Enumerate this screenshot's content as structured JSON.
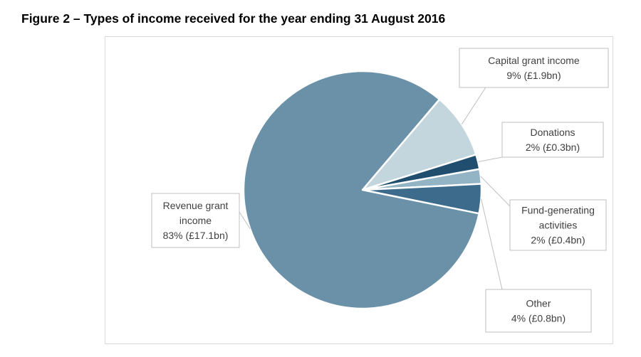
{
  "figure_title": "Figure 2 – Types of income received for the year ending 31 August 2016",
  "chart_data": {
    "type": "pie",
    "title": "",
    "slices": [
      {
        "name": "Capital grant income",
        "percent": 9,
        "value_label": "£1.9bn",
        "label_lines": [
          "Capital grant income",
          "9% (£1.9bn)"
        ],
        "color": "#c3d5dd"
      },
      {
        "name": "Donations",
        "percent": 2,
        "value_label": "£0.3bn",
        "label_lines": [
          "Donations",
          "2% (£0.3bn)"
        ],
        "color": "#1f4e6e"
      },
      {
        "name": "Fund-generating activities",
        "percent": 2,
        "value_label": "£0.4bn",
        "label_lines": [
          "Fund-generating",
          "activities",
          "2% (£0.4bn)"
        ],
        "color": "#93b4c4"
      },
      {
        "name": "Other",
        "percent": 4,
        "value_label": "£0.8bn",
        "label_lines": [
          "Other",
          "4% (£0.8bn)"
        ],
        "color": "#3d6b8b"
      },
      {
        "name": "Revenue grant income",
        "percent": 83,
        "value_label": "£17.1bn",
        "label_lines": [
          "Revenue grant",
          "income",
          "83% (£17.1bn)"
        ],
        "color": "#6a91a8"
      }
    ]
  }
}
